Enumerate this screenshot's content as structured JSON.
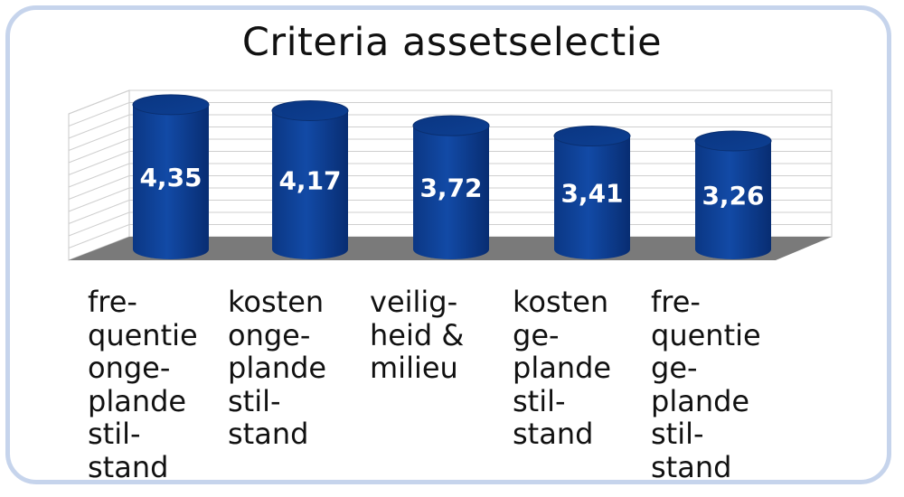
{
  "chart_data": {
    "type": "bar",
    "title": "Criteria assetselectie",
    "categories": [
      "fre-\nquentie\nonge-\nplande\nstil-\nstand",
      "kosten\nonge-\nplande\nstil-\nstand",
      "veilig-\nheid &\nmilieu",
      "kosten\nge-\nplande\nstil-\nstand",
      "fre-\nquentie\nge-\nplande\nstil-\nstand"
    ],
    "values": [
      4.35,
      4.17,
      3.72,
      3.41,
      3.26
    ],
    "value_labels": [
      "4,35",
      "4,17",
      "3,72",
      "3,41",
      "3,26"
    ],
    "ylim": [
      0,
      5
    ],
    "grid": true,
    "legend": "none",
    "bar_color": "#0a3a8c",
    "floor_color": "#7a7a7a"
  }
}
